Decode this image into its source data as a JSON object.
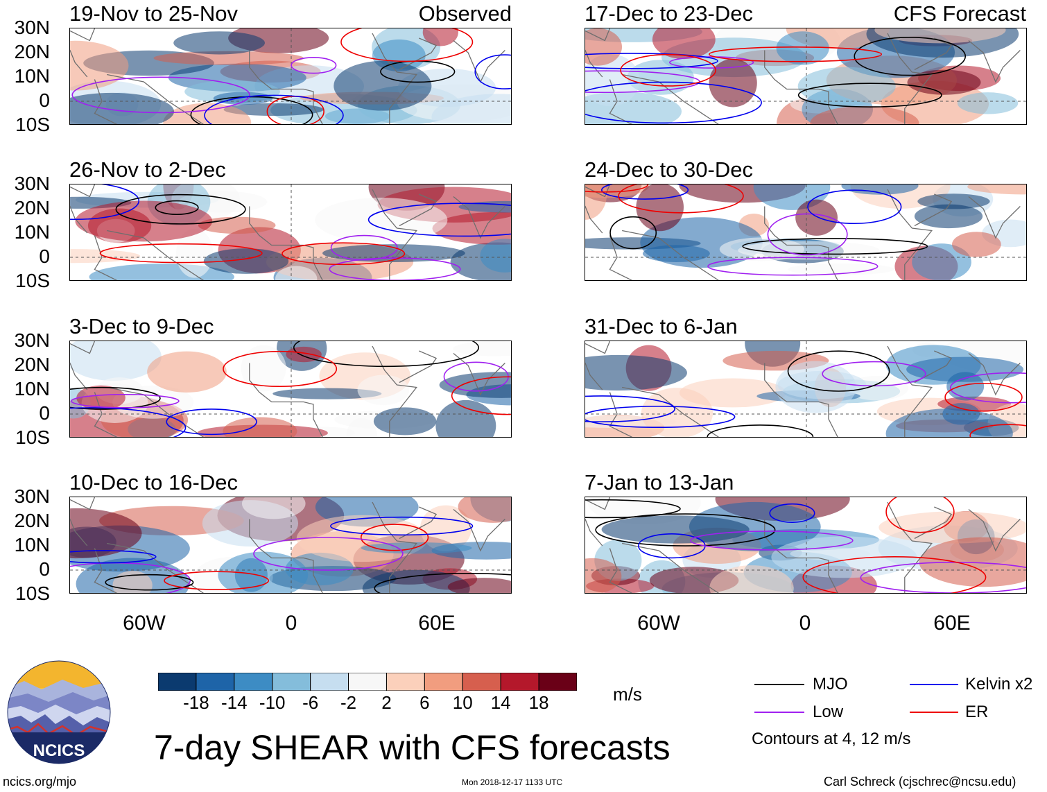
{
  "title": "7-day SHEAR with CFS forecasts",
  "labels": {
    "observed": "Observed",
    "forecast": "CFS Forecast"
  },
  "lat_ticks": [
    "30N",
    "20N",
    "10N",
    "0",
    "10S"
  ],
  "lon_ticks": [
    "60W",
    "0",
    "60E"
  ],
  "panels": [
    {
      "period": "19-Nov to 25-Nov",
      "source": "Observed"
    },
    {
      "period": "26-Nov to 2-Dec",
      "source": "Observed"
    },
    {
      "period": "3-Dec to 9-Dec",
      "source": "Observed"
    },
    {
      "period": "10-Dec to 16-Dec",
      "source": "Observed"
    },
    {
      "period": "17-Dec to 23-Dec",
      "source": "CFS Forecast"
    },
    {
      "period": "24-Dec to 30-Dec",
      "source": "CFS Forecast"
    },
    {
      "period": "31-Dec to 6-Jan",
      "source": "CFS Forecast"
    },
    {
      "period": "7-Jan to 13-Jan",
      "source": "CFS Forecast"
    }
  ],
  "colorbar": {
    "unit": "m/s",
    "tick_labels": [
      "-18",
      "-14",
      "-10",
      "-6",
      "-2",
      "2",
      "6",
      "10",
      "14",
      "18"
    ],
    "colors": [
      "#0b3a6f",
      "#1e64a8",
      "#3d8cc4",
      "#84bddb",
      "#c6def0",
      "#f7f7f7",
      "#fbd0bb",
      "#f19d7f",
      "#d65f4e",
      "#b4182b",
      "#6a0017"
    ]
  },
  "legend": {
    "items": [
      {
        "label": "MJO",
        "color": "#000000"
      },
      {
        "label": "Kelvin x2",
        "color": "#0000ee"
      },
      {
        "label": "Low",
        "color": "#a020f0"
      },
      {
        "label": "ER",
        "color": "#ee0000"
      }
    ],
    "note": "Contours at 4, 12 m/s"
  },
  "logo_text": "NCICS",
  "footer": {
    "url": "ncics.org/mjo",
    "timestamp": "Mon 2018-12-17 1133 UTC",
    "credit": "Carl Schreck (cjschrec@ncsu.edu)"
  }
}
